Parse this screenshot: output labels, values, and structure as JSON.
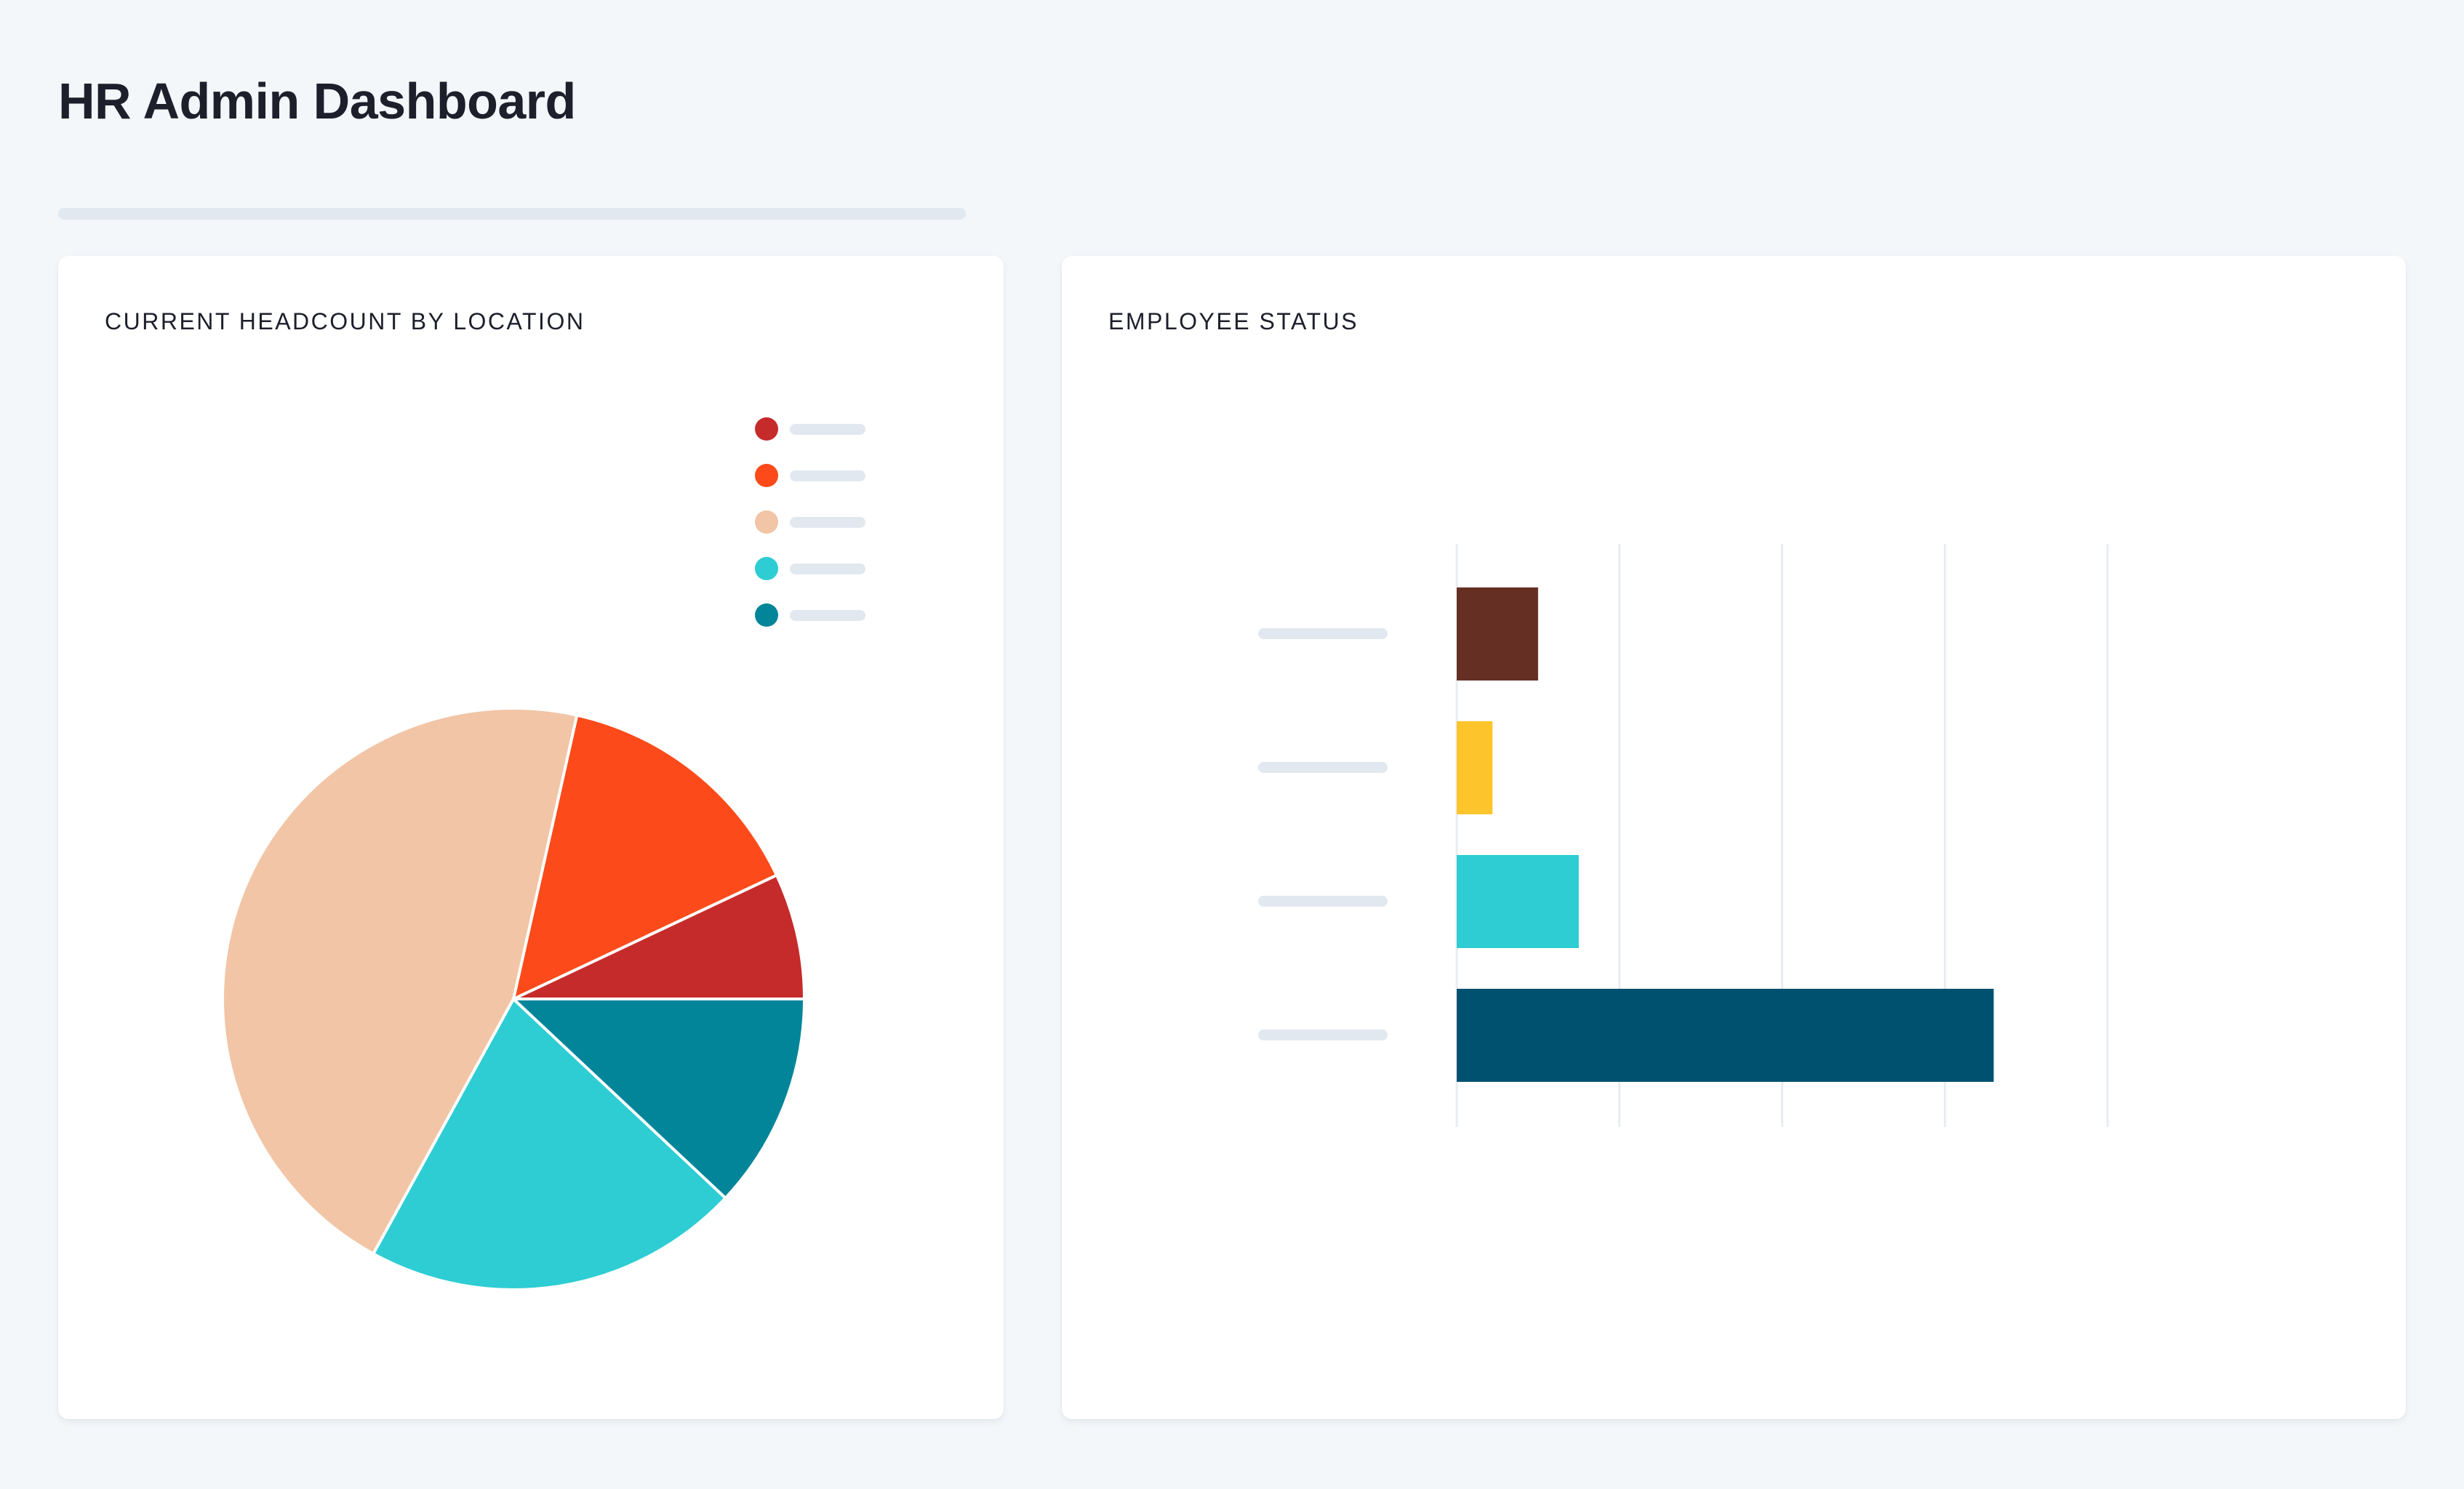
{
  "page": {
    "title": "HR Admin Dashboard"
  },
  "headcount_card": {
    "title": "CURRENT HEADCOUNT BY LOCATION",
    "legend": [
      {
        "color": "#c62b2b"
      },
      {
        "color": "#fc4a1a"
      },
      {
        "color": "#f1c5a6"
      },
      {
        "color": "#2dcdd3"
      },
      {
        "color": "#028599"
      }
    ]
  },
  "status_card": {
    "title": "EMPLOYEE STATUS"
  },
  "chart_data": [
    {
      "type": "pie",
      "title": "CURRENT HEADCOUNT BY LOCATION",
      "labels_visible": false,
      "slices": [
        {
          "value": 7,
          "color": "#c62b2b"
        },
        {
          "value": 14.5,
          "color": "#fc4a1a"
        },
        {
          "value": 45.5,
          "color": "#f1c5a6"
        },
        {
          "value": 21,
          "color": "#2dcdd3"
        },
        {
          "value": 12,
          "color": "#028599"
        }
      ],
      "legend": "top-right"
    },
    {
      "type": "bar",
      "orientation": "horizontal",
      "title": "EMPLOYEE STATUS",
      "category_labels_visible": false,
      "values": [
        0.5,
        0.22,
        0.75,
        3.3
      ],
      "colors": [
        "#662f23",
        "#fec42b",
        "#2dcdd3",
        "#005170"
      ],
      "xlim": [
        0,
        4
      ],
      "grid": true,
      "tick_labels_visible": false
    }
  ]
}
